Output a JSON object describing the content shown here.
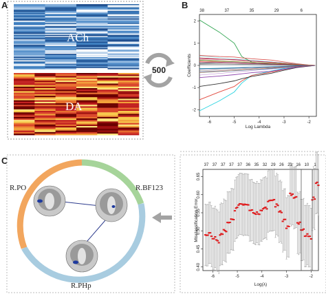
{
  "panel_a": {
    "letter": "A",
    "heatmap_top_label": "ACh",
    "heatmap_bottom_label": "DA",
    "arrow_label": "500"
  },
  "panel_b": {
    "letter": "B",
    "xlabel": "Log Lambda",
    "ylabel": "Coefficients",
    "x_ticks": [
      "-6",
      "-5",
      "-4",
      "-3",
      "-2"
    ],
    "y_ticks": [
      "2",
      "1",
      "0",
      "-1",
      "-2"
    ],
    "top_ticks": [
      "38",
      "37",
      "35",
      "29",
      "6"
    ]
  },
  "panel_c": {
    "letter": "C",
    "regions": [
      "R.PO",
      "R.BF123",
      "R.PHp"
    ]
  },
  "panel_d": {
    "xlabel": "Log(λ)",
    "ylabel": "Misclassification Error",
    "x_ticks": [
      "-6",
      "-5",
      "-4",
      "-3",
      "-2"
    ],
    "y_ticks": [
      "0.65",
      "0.60",
      "0.55",
      "0.50",
      "0.45",
      "0.40"
    ],
    "top_ticks": [
      "37",
      "37",
      "37",
      "37",
      "37",
      "36",
      "35",
      "32",
      "29",
      "26",
      "21",
      "16",
      "10",
      "1"
    ]
  },
  "chart_data": [
    {
      "type": "line",
      "title": "",
      "xlabel": "Log Lambda",
      "ylabel": "Coefficients",
      "xlim": [
        -6.4,
        -1.7
      ],
      "ylim": [
        -2.3,
        2.3
      ],
      "series": [
        {
          "x": [
            -6.4,
            -5.6,
            -5.0,
            -4.7,
            -4.3,
            -3.5,
            -3.0,
            -2.5,
            -2.0,
            -1.75
          ],
          "y": [
            2.05,
            1.5,
            1.0,
            0.4,
            0.15,
            0.06,
            0.03,
            0.01,
            0.0,
            0.0
          ]
        },
        {
          "x": [
            -6.4,
            -5.6,
            -5.0,
            -4.7,
            -4.3,
            -3.5,
            -3.0,
            -2.5,
            -2.0,
            -1.75
          ],
          "y": [
            -2.05,
            -1.6,
            -1.2,
            -0.8,
            -0.45,
            -0.25,
            -0.14,
            -0.07,
            -0.02,
            0.0
          ]
        },
        {
          "x": [
            -6.4,
            -5.6,
            -5.0,
            -4.7,
            -4.3,
            -3.5,
            -3.0,
            -2.5,
            -2.0,
            -1.75
          ],
          "y": [
            -1.55,
            -1.2,
            -0.95,
            -0.7,
            -0.45,
            -0.3,
            -0.18,
            -0.08,
            -0.03,
            0.0
          ]
        },
        {
          "x": [
            -6.4,
            -5.6,
            -5.0,
            -4.7,
            -4.3,
            -3.5,
            -3.0,
            -2.5,
            -2.0,
            -1.75
          ],
          "y": [
            -0.95,
            -0.82,
            -0.7,
            -0.6,
            -0.5,
            -0.35,
            -0.22,
            -0.1,
            -0.03,
            0.0
          ]
        },
        {
          "x": [
            -6.4,
            -5.6,
            -5.0,
            -4.7,
            -4.3,
            -3.5,
            -3.0,
            -2.5,
            -2.0,
            -1.75
          ],
          "y": [
            0.45,
            0.4,
            0.38,
            0.34,
            0.3,
            0.24,
            0.16,
            0.08,
            0.02,
            0.0
          ]
        },
        {
          "x": [
            -6.4,
            -5.6,
            -5.0,
            -4.7,
            -4.3,
            -3.5,
            -3.0,
            -2.5,
            -2.0,
            -1.75
          ],
          "y": [
            0.3,
            0.28,
            0.26,
            0.24,
            0.2,
            0.15,
            0.1,
            0.05,
            0.01,
            0.0
          ]
        },
        {
          "x": [
            -6.4,
            -5.6,
            -5.0,
            -4.7,
            -4.3,
            -3.5,
            -3.0,
            -2.5,
            -2.0,
            -1.75
          ],
          "y": [
            -0.55,
            -0.48,
            -0.42,
            -0.38,
            -0.33,
            -0.26,
            -0.17,
            -0.08,
            -0.02,
            0.0
          ]
        },
        {
          "x": [
            -6.4,
            -5.6,
            -5.0,
            -4.7,
            -4.3,
            -3.5,
            -3.0,
            -2.5,
            -2.0,
            -1.75
          ],
          "y": [
            0.2,
            0.18,
            0.17,
            0.15,
            0.13,
            0.1,
            0.07,
            0.03,
            0.01,
            0.0
          ]
        },
        {
          "x": [
            -6.4,
            -5.6,
            -5.0,
            -4.7,
            -4.3,
            -3.5,
            -3.0,
            -2.5,
            -2.0,
            -1.75
          ],
          "y": [
            -0.3,
            -0.27,
            -0.24,
            -0.22,
            -0.19,
            -0.14,
            -0.09,
            -0.04,
            -0.01,
            0.0
          ]
        },
        {
          "x": [
            -6.4,
            -5.6,
            -5.0,
            -4.7,
            -4.3,
            -3.5,
            -3.0,
            -2.5,
            -2.0,
            -1.75
          ],
          "y": [
            0.1,
            0.12,
            0.11,
            0.09,
            0.08,
            0.06,
            0.04,
            0.02,
            0.0,
            0.0
          ]
        },
        {
          "x": [
            -6.4,
            -5.6,
            -5.0,
            -4.7,
            -4.3,
            -3.5,
            -3.0,
            -2.5,
            -2.0,
            -1.75
          ],
          "y": [
            -0.15,
            -0.14,
            -0.12,
            -0.11,
            -0.09,
            -0.07,
            -0.05,
            -0.02,
            0.0,
            0.0
          ]
        },
        {
          "x": [
            -6.4,
            -5.6,
            -5.0,
            -4.7,
            -4.3,
            -3.5,
            -3.0,
            -2.5,
            -2.0,
            -1.75
          ],
          "y": [
            0.05,
            0.06,
            0.05,
            0.05,
            0.04,
            0.03,
            0.02,
            0.01,
            0.0,
            0.0
          ]
        }
      ]
    },
    {
      "type": "scatter",
      "title": "",
      "xlabel": "Log(λ)",
      "ylabel": "Misclassification Error",
      "xlim": [
        -6.4,
        -1.7
      ],
      "ylim": [
        0.39,
        0.67
      ],
      "vlines": [
        -2.4,
        -1.95
      ],
      "series": [
        {
          "x": [
            -6.3,
            -6.15,
            -6.0,
            -5.85,
            -5.7,
            -5.55,
            -5.4,
            -5.25,
            -5.1,
            -4.95,
            -4.8,
            -4.65,
            -4.5,
            -4.35,
            -4.2,
            -4.05,
            -3.9,
            -3.75,
            -3.6,
            -3.45,
            -3.3,
            -3.15,
            -3.0,
            -2.85,
            -2.7,
            -2.55,
            -2.4,
            -2.25,
            -2.1,
            -1.95,
            -1.8
          ],
          "y": [
            0.49,
            0.49,
            0.48,
            0.47,
            0.49,
            0.5,
            0.52,
            0.53,
            0.56,
            0.575,
            0.575,
            0.575,
            0.56,
            0.55,
            0.55,
            0.56,
            0.565,
            0.58,
            0.585,
            0.57,
            0.555,
            0.53,
            0.51,
            0.6,
            0.59,
            0.52,
            0.5,
            0.49,
            0.48,
            0.59,
            0.63
          ]
        }
      ]
    }
  ]
}
